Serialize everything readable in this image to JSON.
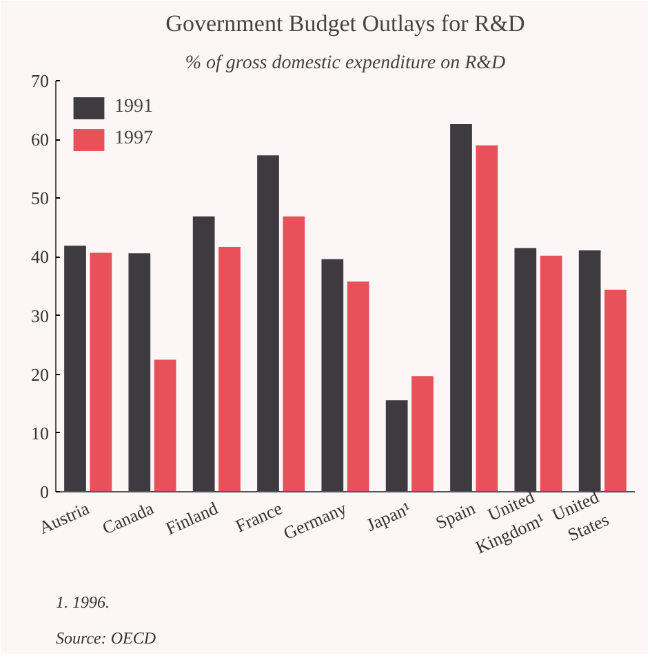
{
  "chart_data": {
    "type": "bar",
    "title": "Government Budget Outlays for R&D",
    "subtitle": "% of gross domestic expenditure on R&D",
    "categories": [
      "Austria",
      "Canada",
      "Finland",
      "France",
      "Germany",
      "Japan¹",
      "Spain",
      "United Kingdom¹",
      "United States"
    ],
    "series": [
      {
        "name": "1991",
        "color": "#3d3b3f",
        "values": [
          41.9,
          40.6,
          46.9,
          57.3,
          39.6,
          15.6,
          62.6,
          41.5,
          41.1
        ]
      },
      {
        "name": "1997",
        "color": "#e8505a",
        "values": [
          40.7,
          22.5,
          41.7,
          46.9,
          35.8,
          19.7,
          59.0,
          40.2,
          34.4
        ]
      }
    ],
    "ylim": [
      0,
      70
    ],
    "yticks": [
      0,
      10,
      20,
      30,
      40,
      50,
      60,
      70
    ],
    "grid": false,
    "legend": "top left",
    "annotations": [
      "1. 1996.",
      "Source: OECD"
    ]
  }
}
